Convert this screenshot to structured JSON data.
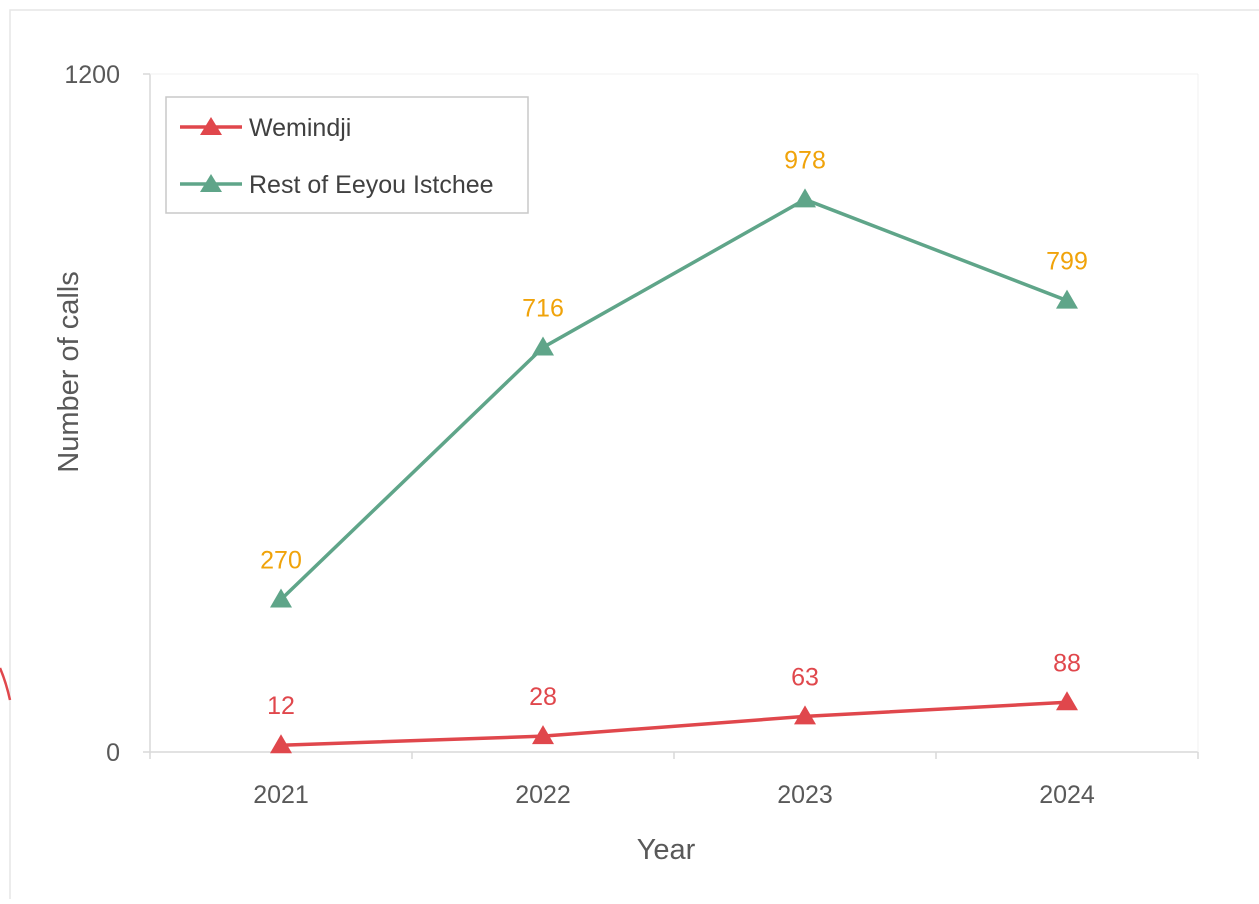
{
  "chart_data": {
    "type": "line",
    "title": "",
    "xlabel": "Year",
    "ylabel": "Number of calls",
    "categories": [
      "2021",
      "2022",
      "2023",
      "2024"
    ],
    "ylim": [
      0,
      1200
    ],
    "y_tick_labels": [
      "0",
      "1200"
    ],
    "grid": false,
    "legend_position": "top-left",
    "series": [
      {
        "name": "Wemindji",
        "values": [
          12,
          28,
          63,
          88
        ],
        "labels": [
          "12",
          "28",
          "63",
          "88"
        ],
        "color": "#e0474c",
        "label_color": "#e0474c",
        "marker": "triangle"
      },
      {
        "name": "Rest of Eeyou Istchee",
        "values": [
          270,
          716,
          978,
          799
        ],
        "labels": [
          "270",
          "716",
          "978",
          "799"
        ],
        "color": "#5fa589",
        "label_color": "#f0a30a",
        "marker": "triangle"
      }
    ]
  },
  "colors": {
    "axis": "#d9d9d9",
    "frame": "#e6e6e6",
    "legend_border": "#c8c8c8",
    "text": "#595959"
  }
}
